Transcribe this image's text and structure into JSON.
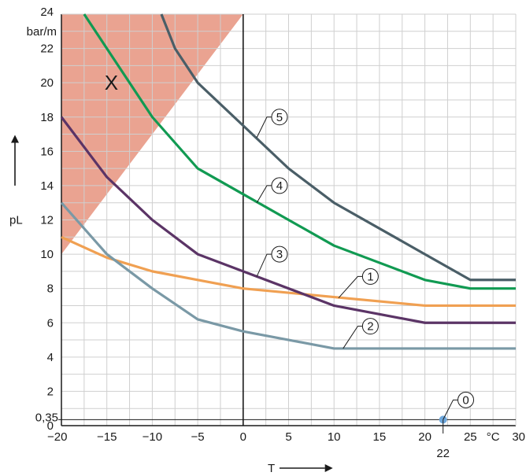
{
  "chart_data": {
    "type": "line",
    "x_range": [
      -20,
      30
    ],
    "y_range": [
      0,
      24
    ],
    "x_ticks": [
      "−20",
      "−15",
      "−10",
      "−5",
      "0",
      "5",
      "10",
      "15",
      "20",
      "25",
      "30"
    ],
    "x_unit_label": "°C",
    "x_marker_tick": "22",
    "y_ticks": [
      "0",
      "2",
      "4",
      "6",
      "8",
      "10",
      "12",
      "14",
      "16",
      "18",
      "20",
      "22",
      "24"
    ],
    "y_unit_label": "bar/m",
    "y_marker_tick": "0,35",
    "xlabel": "T",
    "ylabel": "pL",
    "grid": true,
    "region_label": "X",
    "region_color": "#eaa391",
    "series": [
      {
        "name": "1",
        "color": "#f0a052",
        "x": [
          -20,
          -15,
          -10,
          -5,
          0,
          10,
          20,
          30
        ],
        "y": [
          11,
          9.8,
          9,
          8.5,
          8,
          7.5,
          7,
          7
        ]
      },
      {
        "name": "2",
        "color": "#7a99a6",
        "x": [
          -20,
          -15,
          -10,
          -5,
          0,
          5,
          10,
          20,
          30
        ],
        "y": [
          13,
          10,
          8,
          6.2,
          5.5,
          5,
          4.5,
          4.5,
          4.5
        ]
      },
      {
        "name": "3",
        "color": "#5b3466",
        "x": [
          -20,
          -15,
          -10,
          -5,
          0,
          10,
          20,
          30
        ],
        "y": [
          18,
          14.5,
          12,
          10,
          9,
          7,
          6,
          6
        ]
      },
      {
        "name": "4",
        "color": "#119a52",
        "x": [
          -17.5,
          -15,
          -10,
          -5,
          0,
          10,
          20,
          25,
          30
        ],
        "y": [
          24,
          22,
          18,
          15,
          13.5,
          10.5,
          8.5,
          8,
          8
        ]
      },
      {
        "name": "5",
        "color": "#4a5e67",
        "x": [
          -9,
          -7.5,
          -5,
          0,
          5,
          10,
          20,
          25,
          30
        ],
        "y": [
          24,
          22,
          20,
          17.5,
          15,
          13,
          10,
          8.5,
          8.5
        ]
      }
    ],
    "points": [
      {
        "name": "0",
        "x": 22,
        "y": 0.35,
        "color": "#6fa8dc"
      }
    ]
  }
}
